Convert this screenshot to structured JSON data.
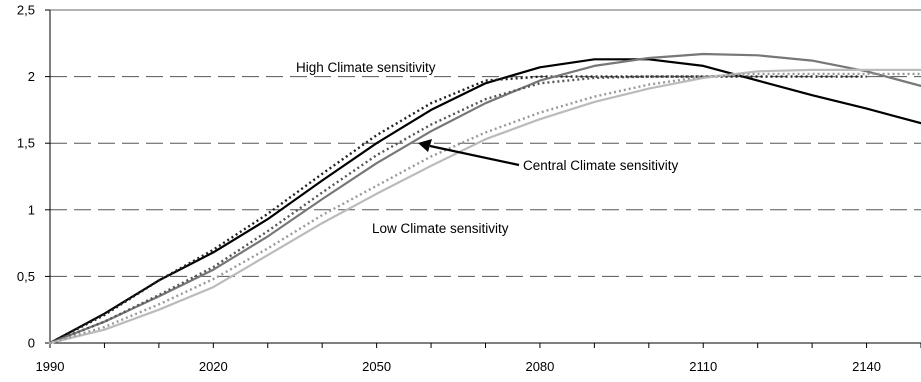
{
  "chart_data": {
    "type": "line",
    "title": "",
    "xlabel": "",
    "ylabel": "",
    "xlim": [
      1990,
      2150
    ],
    "ylim": [
      0,
      2.5
    ],
    "x_ticks": [
      "1990",
      "2020",
      "2050",
      "2080",
      "2110",
      "2140"
    ],
    "y_ticks": [
      "0",
      "0,5",
      "1",
      "1,5",
      "2",
      "2,5"
    ],
    "grid": "dashed horizontal",
    "annotations": [
      {
        "text": "High Climate sensitivity"
      },
      {
        "text": "Central Climate sensitivity"
      },
      {
        "text": "Low Climate sensitivity"
      }
    ],
    "series": [
      {
        "color": "#000000",
        "style": "solid",
        "x": [
          1990,
          2000,
          2010,
          2020,
          2030,
          2040,
          2050,
          2060,
          2070,
          2080,
          2090,
          2100,
          2110,
          2120,
          2130,
          2140,
          2150
        ],
        "y": [
          0,
          0.22,
          0.47,
          0.68,
          0.93,
          1.22,
          1.5,
          1.75,
          1.95,
          2.07,
          2.13,
          2.13,
          2.08,
          1.97,
          1.86,
          1.76,
          1.65
        ]
      },
      {
        "color": "#222222",
        "style": "dotted",
        "x": [
          1990,
          2000,
          2010,
          2020,
          2030,
          2040,
          2050,
          2060,
          2070,
          2080,
          2090,
          2100,
          2110,
          2120,
          2130,
          2140
        ],
        "y": [
          0,
          0.21,
          0.47,
          0.7,
          0.97,
          1.27,
          1.56,
          1.8,
          1.97,
          2.0,
          2.0,
          2.0,
          2.0,
          2.0,
          2.0,
          2.0
        ]
      },
      {
        "color": "#777777",
        "style": "solid",
        "x": [
          1990,
          2000,
          2010,
          2020,
          2030,
          2040,
          2050,
          2060,
          2070,
          2080,
          2090,
          2100,
          2110,
          2120,
          2130,
          2140,
          2150
        ],
        "y": [
          0,
          0.16,
          0.35,
          0.55,
          0.8,
          1.08,
          1.35,
          1.59,
          1.8,
          1.97,
          2.08,
          2.14,
          2.17,
          2.16,
          2.12,
          2.04,
          1.93
        ]
      },
      {
        "color": "#555555",
        "style": "dotted",
        "x": [
          1990,
          2000,
          2010,
          2020,
          2030,
          2040,
          2050,
          2060,
          2070,
          2080,
          2090,
          2100,
          2110
        ],
        "y": [
          0,
          0.16,
          0.36,
          0.57,
          0.84,
          1.13,
          1.41,
          1.64,
          1.83,
          1.95,
          1.99,
          2.0,
          2.0
        ]
      },
      {
        "color": "#bbbbbb",
        "style": "solid",
        "x": [
          1990,
          2000,
          2010,
          2020,
          2030,
          2040,
          2050,
          2060,
          2070,
          2080,
          2090,
          2100,
          2110,
          2120,
          2130,
          2140,
          2150
        ],
        "y": [
          0,
          0.1,
          0.25,
          0.42,
          0.66,
          0.9,
          1.12,
          1.33,
          1.53,
          1.68,
          1.81,
          1.91,
          1.99,
          2.04,
          2.05,
          2.05,
          2.05
        ]
      },
      {
        "color": "#999999",
        "style": "dotted",
        "x": [
          1990,
          2000,
          2010,
          2020,
          2030,
          2040,
          2050,
          2060,
          2070,
          2080,
          2090,
          2100,
          2110,
          2120,
          2130,
          2140,
          2150
        ],
        "y": [
          0,
          0.12,
          0.29,
          0.48,
          0.71,
          0.96,
          1.18,
          1.4,
          1.58,
          1.73,
          1.85,
          1.94,
          2.0,
          2.02,
          2.02,
          2.02,
          2.02
        ]
      }
    ]
  }
}
